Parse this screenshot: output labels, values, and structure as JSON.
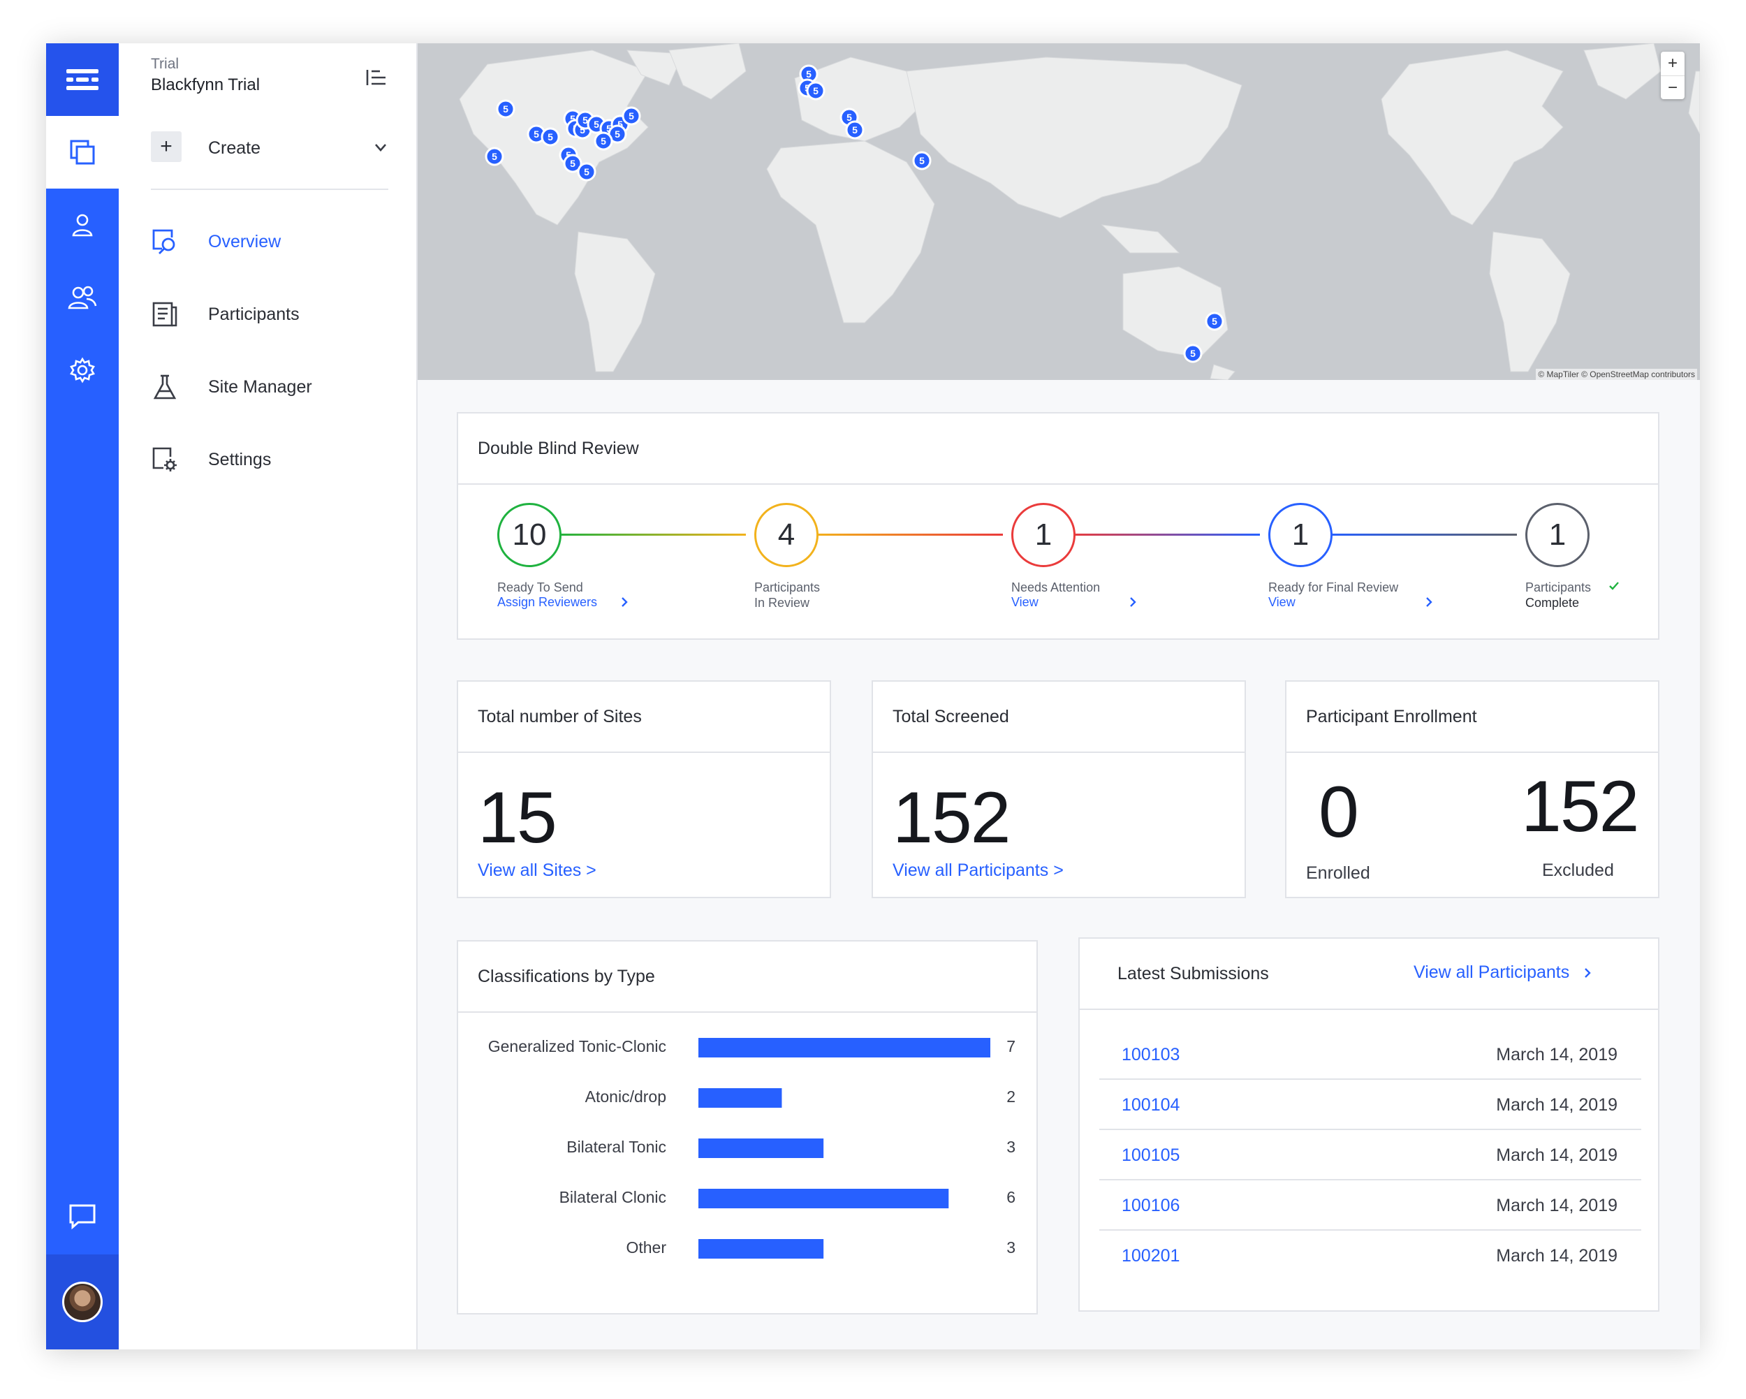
{
  "nav": {
    "trial_label": "Trial",
    "trial_name": "Blackfynn Trial",
    "create_label": "Create",
    "items": [
      {
        "label": "Overview",
        "icon": "overview-search-icon"
      },
      {
        "label": "Participants",
        "icon": "participants-document-icon"
      },
      {
        "label": "Site Manager",
        "icon": "site-manager-flask-icon"
      },
      {
        "label": "Settings",
        "icon": "settings-document-gear-icon"
      }
    ]
  },
  "map": {
    "attribution": "© MapTiler © OpenStreetMap contributors",
    "zoom_in": "+",
    "zoom_out": "−",
    "marker_label": "5"
  },
  "pipeline": {
    "title": "Double Blind Review",
    "stages": [
      {
        "count": "10",
        "label": "Ready To Send",
        "link": "Assign Reviewers",
        "color": "#1fb23f"
      },
      {
        "count": "4",
        "label": "Participants",
        "label2": "In Review",
        "link": "",
        "color": "#f2b21c"
      },
      {
        "count": "1",
        "label": "Needs Attention",
        "link": "View",
        "color": "#ea3b3b"
      },
      {
        "count": "1",
        "label": "Ready for Final Review",
        "link": "View",
        "color": "#2760ff"
      },
      {
        "count": "1",
        "label": "Participants",
        "label2": "Complete",
        "link": "",
        "color": "#5b606c"
      }
    ]
  },
  "sites": {
    "title": "Total number of Sites",
    "value": "15",
    "link": "View all Sites >"
  },
  "screened": {
    "title": "Total Screened",
    "value": "152",
    "link": "View all Participants >"
  },
  "enrollment": {
    "title": "Participant Enrollment",
    "enrolled_value": "0",
    "enrolled_label": "Enrolled",
    "excluded_value": "152",
    "excluded_label": "Excluded"
  },
  "classifications": {
    "title": "Classifications by Type"
  },
  "chart_data": {
    "type": "bar",
    "orientation": "horizontal",
    "title": "Classifications by Type",
    "categories": [
      "Generalized Tonic-Clonic",
      "Atonic/drop",
      "Bilateral Tonic",
      "Bilateral Clonic",
      "Other"
    ],
    "values": [
      7,
      2,
      3,
      6,
      3
    ],
    "xlim": [
      0,
      7
    ],
    "bar_color": "#2760ff",
    "grid": false
  },
  "submissions": {
    "title": "Latest Submissions",
    "link": "View all Participants",
    "rows": [
      {
        "id": "100103",
        "date": "March 14, 2019"
      },
      {
        "id": "100104",
        "date": "March 14, 2019"
      },
      {
        "id": "100105",
        "date": "March 14, 2019"
      },
      {
        "id": "100106",
        "date": "March 14, 2019"
      },
      {
        "id": "100201",
        "date": "March 14, 2019"
      }
    ]
  },
  "colors": {
    "accent": "#2760ff",
    "rail": "#2760ff"
  }
}
